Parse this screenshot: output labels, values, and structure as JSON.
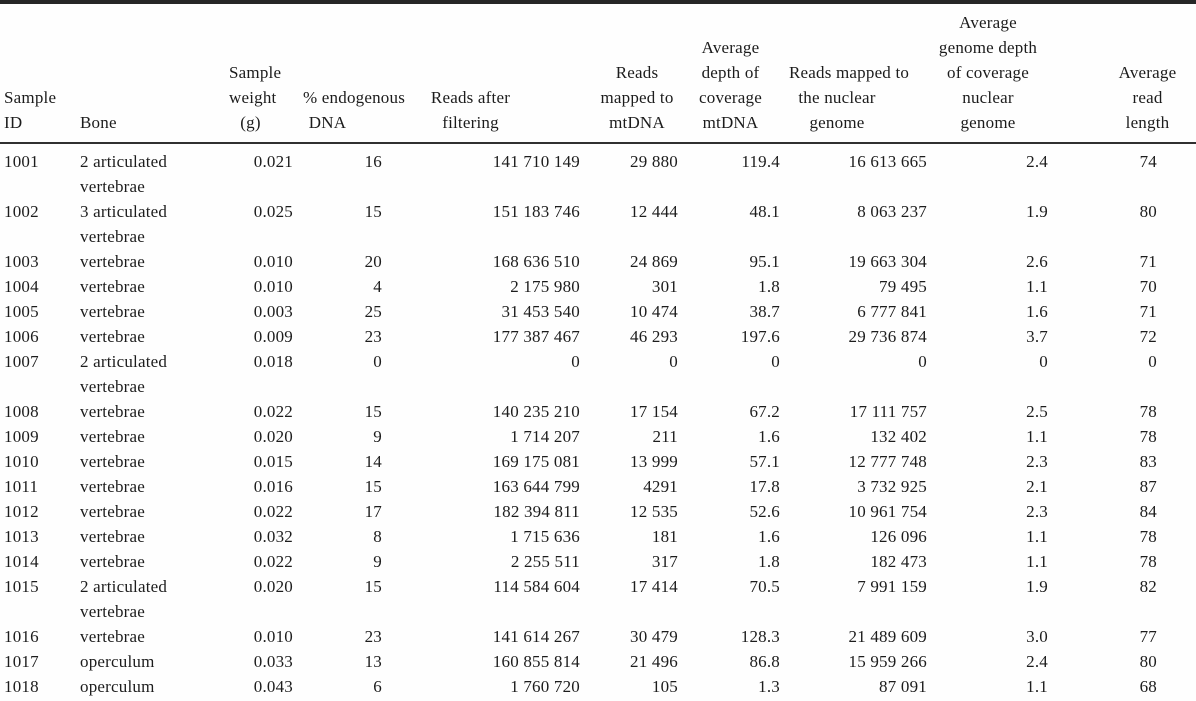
{
  "table": {
    "header": {
      "columns": [
        {
          "id": "sample-id",
          "lines": [
            "Sample",
            "ID"
          ]
        },
        {
          "id": "bone",
          "lines": [
            "Bone"
          ]
        },
        {
          "id": "sample-weight",
          "lines": [
            "Sample",
            "weight",
            "(g)"
          ]
        },
        {
          "id": "pct-endogenous-dna",
          "lines": [
            "% endogenous",
            "DNA"
          ]
        },
        {
          "id": "reads-after-filtering",
          "lines": [
            "Reads after",
            "filtering"
          ]
        },
        {
          "id": "reads-mapped-mtdna",
          "lines": [
            "Reads",
            "mapped to",
            "mtDNA"
          ]
        },
        {
          "id": "avg-depth-mtdna",
          "lines": [
            "Average",
            "depth of",
            "coverage",
            "mtDNA"
          ]
        },
        {
          "id": "reads-mapped-nuclear",
          "lines": [
            "Reads mapped to",
            "the nuclear",
            "genome"
          ]
        },
        {
          "id": "avg-depth-nuclear",
          "lines": [
            "Average",
            "genome depth",
            "of coverage",
            "nuclear",
            "genome"
          ]
        },
        {
          "id": "avg-read-length",
          "lines": [
            "Average",
            "read",
            "length"
          ]
        }
      ]
    },
    "rows": [
      {
        "sample_id": "1001",
        "bone": "2 articulated vertebrae",
        "weight": "0.021",
        "pct_endogenous": "16",
        "reads_after_filtering": "141 710 149",
        "reads_mtdna": "29 880",
        "avg_depth_mtdna": "119.4",
        "reads_nuclear": "16 613 665",
        "avg_depth_nuclear": "2.4",
        "avg_read_length": "74"
      },
      {
        "sample_id": "1002",
        "bone": "3 articulated vertebrae",
        "weight": "0.025",
        "pct_endogenous": "15",
        "reads_after_filtering": "151 183 746",
        "reads_mtdna": "12 444",
        "avg_depth_mtdna": "48.1",
        "reads_nuclear": "8 063 237",
        "avg_depth_nuclear": "1.9",
        "avg_read_length": "80"
      },
      {
        "sample_id": "1003",
        "bone": "vertebrae",
        "weight": "0.010",
        "pct_endogenous": "20",
        "reads_after_filtering": "168 636 510",
        "reads_mtdna": "24 869",
        "avg_depth_mtdna": "95.1",
        "reads_nuclear": "19 663 304",
        "avg_depth_nuclear": "2.6",
        "avg_read_length": "71"
      },
      {
        "sample_id": "1004",
        "bone": "vertebrae",
        "weight": "0.010",
        "pct_endogenous": "4",
        "reads_after_filtering": "2 175 980",
        "reads_mtdna": "301",
        "avg_depth_mtdna": "1.8",
        "reads_nuclear": "79 495",
        "avg_depth_nuclear": "1.1",
        "avg_read_length": "70"
      },
      {
        "sample_id": "1005",
        "bone": "vertebrae",
        "weight": "0.003",
        "pct_endogenous": "25",
        "reads_after_filtering": "31 453 540",
        "reads_mtdna": "10 474",
        "avg_depth_mtdna": "38.7",
        "reads_nuclear": "6 777 841",
        "avg_depth_nuclear": "1.6",
        "avg_read_length": "71"
      },
      {
        "sample_id": "1006",
        "bone": "vertebrae",
        "weight": "0.009",
        "pct_endogenous": "23",
        "reads_after_filtering": "177 387 467",
        "reads_mtdna": "46 293",
        "avg_depth_mtdna": "197.6",
        "reads_nuclear": "29 736 874",
        "avg_depth_nuclear": "3.7",
        "avg_read_length": "72"
      },
      {
        "sample_id": "1007",
        "bone": "2 articulated vertebrae",
        "weight": "0.018",
        "pct_endogenous": "0",
        "reads_after_filtering": "0",
        "reads_mtdna": "0",
        "avg_depth_mtdna": "0",
        "reads_nuclear": "0",
        "avg_depth_nuclear": "0",
        "avg_read_length": "0"
      },
      {
        "sample_id": "1008",
        "bone": "vertebrae",
        "weight": "0.022",
        "pct_endogenous": "15",
        "reads_after_filtering": "140 235 210",
        "reads_mtdna": "17 154",
        "avg_depth_mtdna": "67.2",
        "reads_nuclear": "17 111 757",
        "avg_depth_nuclear": "2.5",
        "avg_read_length": "78"
      },
      {
        "sample_id": "1009",
        "bone": "vertebrae",
        "weight": "0.020",
        "pct_endogenous": "9",
        "reads_after_filtering": "1 714 207",
        "reads_mtdna": "211",
        "avg_depth_mtdna": "1.6",
        "reads_nuclear": "132 402",
        "avg_depth_nuclear": "1.1",
        "avg_read_length": "78"
      },
      {
        "sample_id": "1010",
        "bone": "vertebrae",
        "weight": "0.015",
        "pct_endogenous": "14",
        "reads_after_filtering": "169 175 081",
        "reads_mtdna": "13 999",
        "avg_depth_mtdna": "57.1",
        "reads_nuclear": "12 777 748",
        "avg_depth_nuclear": "2.3",
        "avg_read_length": "83"
      },
      {
        "sample_id": "1011",
        "bone": "vertebrae",
        "weight": "0.016",
        "pct_endogenous": "15",
        "reads_after_filtering": "163 644 799",
        "reads_mtdna": "4291",
        "avg_depth_mtdna": "17.8",
        "reads_nuclear": "3 732 925",
        "avg_depth_nuclear": "2.1",
        "avg_read_length": "87"
      },
      {
        "sample_id": "1012",
        "bone": "vertebrae",
        "weight": "0.022",
        "pct_endogenous": "17",
        "reads_after_filtering": "182 394 811",
        "reads_mtdna": "12 535",
        "avg_depth_mtdna": "52.6",
        "reads_nuclear": "10 961 754",
        "avg_depth_nuclear": "2.3",
        "avg_read_length": "84"
      },
      {
        "sample_id": "1013",
        "bone": "vertebrae",
        "weight": "0.032",
        "pct_endogenous": "8",
        "reads_after_filtering": "1 715 636",
        "reads_mtdna": "181",
        "avg_depth_mtdna": "1.6",
        "reads_nuclear": "126 096",
        "avg_depth_nuclear": "1.1",
        "avg_read_length": "78"
      },
      {
        "sample_id": "1014",
        "bone": "vertebrae",
        "weight": "0.022",
        "pct_endogenous": "9",
        "reads_after_filtering": "2 255 511",
        "reads_mtdna": "317",
        "avg_depth_mtdna": "1.8",
        "reads_nuclear": "182 473",
        "avg_depth_nuclear": "1.1",
        "avg_read_length": "78"
      },
      {
        "sample_id": "1015",
        "bone": "2 articulated vertebrae",
        "weight": "0.020",
        "pct_endogenous": "15",
        "reads_after_filtering": "114 584 604",
        "reads_mtdna": "17 414",
        "avg_depth_mtdna": "70.5",
        "reads_nuclear": "7 991 159",
        "avg_depth_nuclear": "1.9",
        "avg_read_length": "82"
      },
      {
        "sample_id": "1016",
        "bone": "vertebrae",
        "weight": "0.010",
        "pct_endogenous": "23",
        "reads_after_filtering": "141 614 267",
        "reads_mtdna": "30 479",
        "avg_depth_mtdna": "128.3",
        "reads_nuclear": "21 489 609",
        "avg_depth_nuclear": "3.0",
        "avg_read_length": "77"
      },
      {
        "sample_id": "1017",
        "bone": "operculum",
        "weight": "0.033",
        "pct_endogenous": "13",
        "reads_after_filtering": "160 855 814",
        "reads_mtdna": "21 496",
        "avg_depth_mtdna": "86.8",
        "reads_nuclear": "15 959 266",
        "avg_depth_nuclear": "2.4",
        "avg_read_length": "80"
      },
      {
        "sample_id": "1018",
        "bone": "operculum",
        "weight": "0.043",
        "pct_endogenous": "6",
        "reads_after_filtering": "1 760 720",
        "reads_mtdna": "105",
        "avg_depth_mtdna": "1.3",
        "reads_nuclear": "87 091",
        "avg_depth_nuclear": "1.1",
        "avg_read_length": "68"
      }
    ]
  },
  "style": {
    "text_color": "#1c1c1c",
    "rule_color": "#262626",
    "background": "#fefefe"
  }
}
